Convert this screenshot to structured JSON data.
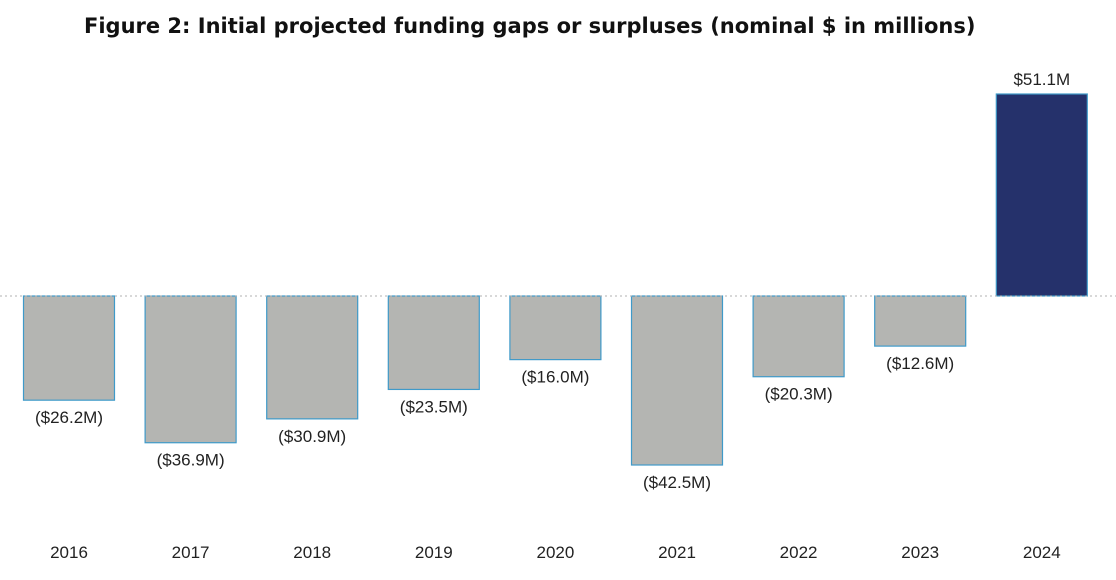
{
  "chart_data": {
    "type": "bar",
    "title": "Figure 2: Initial projected funding gaps or surpluses (nominal $ in millions)",
    "xlabel": "",
    "ylabel": "",
    "categories": [
      "2016",
      "2017",
      "2018",
      "2019",
      "2020",
      "2021",
      "2022",
      "2023",
      "2024"
    ],
    "values": [
      -26.2,
      -36.9,
      -30.9,
      -23.5,
      -16.0,
      -42.5,
      -20.3,
      -12.6,
      51.1
    ],
    "data_labels": [
      "($26.2M)",
      "($36.9M)",
      "($30.9M)",
      "($23.5M)",
      "($16.0M)",
      "($42.5M)",
      "($20.3M)",
      "($12.6M)",
      "$51.1M"
    ],
    "ylim": [
      -42.5,
      51.1
    ],
    "grid": false,
    "zero_line": "dotted",
    "colors": {
      "negative_fill": "#b4b5b2",
      "negative_stroke": "#3f9ac9",
      "positive_fill": "#25316b",
      "positive_stroke": "#3f9ac9",
      "zero_line": "#b0b0b0"
    }
  }
}
